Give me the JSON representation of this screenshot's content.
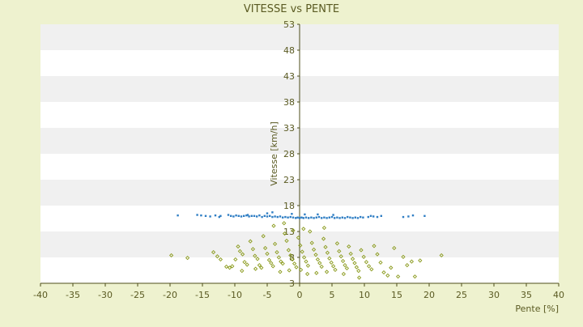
{
  "chart_data": {
    "type": "scatter",
    "title": "VITESSE vs PENTE",
    "xlabel": "Pente [%]",
    "ylabel": "Vitesse [km/h]",
    "xlim": [
      -40,
      40
    ],
    "ylim": [
      3,
      53
    ],
    "x_ticks": [
      -40,
      -35,
      -30,
      -25,
      -20,
      -15,
      -10,
      -5,
      0,
      5,
      10,
      15,
      20,
      25,
      30,
      35,
      40
    ],
    "y_ticks": [
      3,
      8,
      13,
      18,
      23,
      28,
      33,
      38,
      43,
      48,
      53
    ],
    "grid": "horizontal bands",
    "legend": "none",
    "colors": {
      "background": "#eef2cf",
      "band_light": "#ffffff",
      "band_dark": "#f0f0f0",
      "series1": "#2f7ec4",
      "series2": "#8a9a1c",
      "text": "#5a5a22",
      "axis": "#4d4d1a"
    },
    "series": [
      {
        "color": "#2f7ec4",
        "points": [
          [
            -18.8,
            16.1
          ],
          [
            -15.8,
            16.2
          ],
          [
            -15.2,
            16.1
          ],
          [
            -14.5,
            16.0
          ],
          [
            -13.8,
            15.9
          ],
          [
            -13.0,
            16.1
          ],
          [
            -12.4,
            15.8
          ],
          [
            -12.2,
            16.0
          ],
          [
            -11.0,
            16.2
          ],
          [
            -10.6,
            16.0
          ],
          [
            -10.2,
            15.9
          ],
          [
            -9.8,
            16.1
          ],
          [
            -9.4,
            16.0
          ],
          [
            -9.0,
            15.9
          ],
          [
            -8.6,
            16.0
          ],
          [
            -8.2,
            16.1
          ],
          [
            -7.8,
            15.9
          ],
          [
            -7.4,
            16.0
          ],
          [
            -7.0,
            16.0
          ],
          [
            -6.6,
            15.9
          ],
          [
            -6.2,
            16.1
          ],
          [
            -5.8,
            15.8
          ],
          [
            -5.4,
            16.0
          ],
          [
            -5.0,
            15.9
          ],
          [
            -4.6,
            16.0
          ],
          [
            -4.2,
            15.8
          ],
          [
            -3.8,
            15.9
          ],
          [
            -3.4,
            15.8
          ],
          [
            -3.0,
            15.9
          ],
          [
            -2.6,
            15.7
          ],
          [
            -2.2,
            15.8
          ],
          [
            -1.8,
            15.7
          ],
          [
            -1.4,
            15.8
          ],
          [
            -1.0,
            15.7
          ],
          [
            -0.6,
            15.6
          ],
          [
            -0.3,
            15.7
          ],
          [
            0.0,
            15.6
          ],
          [
            0.3,
            15.7
          ],
          [
            0.6,
            15.6
          ],
          [
            1.0,
            15.7
          ],
          [
            1.4,
            15.6
          ],
          [
            1.8,
            15.7
          ],
          [
            2.2,
            15.6
          ],
          [
            2.6,
            15.7
          ],
          [
            3.0,
            15.8
          ],
          [
            3.4,
            15.6
          ],
          [
            3.8,
            15.7
          ],
          [
            4.2,
            15.6
          ],
          [
            4.6,
            15.7
          ],
          [
            5.0,
            15.8
          ],
          [
            5.4,
            15.6
          ],
          [
            5.8,
            15.7
          ],
          [
            6.2,
            15.6
          ],
          [
            6.6,
            15.7
          ],
          [
            7.0,
            15.6
          ],
          [
            7.4,
            15.8
          ],
          [
            7.8,
            15.7
          ],
          [
            8.2,
            15.6
          ],
          [
            8.6,
            15.7
          ],
          [
            9.0,
            15.6
          ],
          [
            9.4,
            15.8
          ],
          [
            9.8,
            15.7
          ],
          [
            10.6,
            15.8
          ],
          [
            11.0,
            16.0
          ],
          [
            11.4,
            15.9
          ],
          [
            12.0,
            15.8
          ],
          [
            12.6,
            16.0
          ],
          [
            16.0,
            15.8
          ],
          [
            16.8,
            15.9
          ],
          [
            17.5,
            16.1
          ],
          [
            19.3,
            16.0
          ],
          [
            -5.0,
            16.5
          ],
          [
            -4.2,
            16.7
          ],
          [
            2.8,
            16.3
          ],
          [
            5.2,
            16.2
          ],
          [
            -8.0,
            16.2
          ],
          [
            0.8,
            16.3
          ],
          [
            -1.2,
            16.4
          ]
        ]
      },
      {
        "color": "#8a9a1c",
        "points": [
          [
            -19.8,
            8.4
          ],
          [
            -17.3,
            7.9
          ],
          [
            -13.3,
            9.0
          ],
          [
            -12.7,
            8.2
          ],
          [
            -12.2,
            7.6
          ],
          [
            -11.3,
            6.2
          ],
          [
            -10.8,
            6.0
          ],
          [
            -10.4,
            6.3
          ],
          [
            -9.9,
            7.6
          ],
          [
            -9.5,
            10.1
          ],
          [
            -9.2,
            9.2
          ],
          [
            -8.8,
            8.6
          ],
          [
            -8.5,
            7.1
          ],
          [
            -8.1,
            6.6
          ],
          [
            -7.6,
            11.1
          ],
          [
            -7.2,
            9.6
          ],
          [
            -6.9,
            8.3
          ],
          [
            -6.5,
            7.7
          ],
          [
            -6.2,
            6.5
          ],
          [
            -5.9,
            6.0
          ],
          [
            -5.6,
            12.1
          ],
          [
            -5.3,
            9.8
          ],
          [
            -5.0,
            8.7
          ],
          [
            -4.7,
            7.5
          ],
          [
            -4.4,
            6.9
          ],
          [
            -4.1,
            6.3
          ],
          [
            -3.8,
            10.6
          ],
          [
            -3.5,
            9.0
          ],
          [
            -3.2,
            8.0
          ],
          [
            -2.9,
            7.2
          ],
          [
            -2.6,
            6.8
          ],
          [
            -2.3,
            12.6
          ],
          [
            -2.0,
            11.2
          ],
          [
            -1.7,
            9.4
          ],
          [
            -1.4,
            8.4
          ],
          [
            -1.1,
            7.6
          ],
          [
            -0.8,
            6.8
          ],
          [
            -0.5,
            6.1
          ],
          [
            -0.2,
            11.8
          ],
          [
            0.1,
            10.3
          ],
          [
            0.4,
            9.1
          ],
          [
            0.7,
            8.0
          ],
          [
            1.0,
            7.2
          ],
          [
            1.3,
            6.4
          ],
          [
            1.6,
            13.0
          ],
          [
            1.9,
            10.8
          ],
          [
            2.2,
            9.5
          ],
          [
            2.5,
            8.5
          ],
          [
            2.8,
            7.6
          ],
          [
            3.1,
            6.9
          ],
          [
            3.4,
            6.2
          ],
          [
            3.7,
            11.6
          ],
          [
            4.0,
            10.0
          ],
          [
            4.3,
            8.9
          ],
          [
            4.6,
            7.8
          ],
          [
            4.9,
            7.0
          ],
          [
            5.2,
            6.3
          ],
          [
            5.5,
            5.6
          ],
          [
            5.8,
            10.7
          ],
          [
            6.1,
            9.2
          ],
          [
            6.4,
            8.2
          ],
          [
            6.7,
            7.3
          ],
          [
            7.0,
            6.5
          ],
          [
            7.3,
            5.9
          ],
          [
            7.6,
            10.1
          ],
          [
            7.9,
            8.7
          ],
          [
            8.2,
            7.7
          ],
          [
            8.5,
            6.9
          ],
          [
            8.8,
            6.1
          ],
          [
            9.1,
            5.4
          ],
          [
            9.5,
            9.4
          ],
          [
            9.9,
            8.1
          ],
          [
            10.3,
            7.1
          ],
          [
            10.7,
            6.3
          ],
          [
            11.1,
            5.7
          ],
          [
            11.5,
            10.2
          ],
          [
            12.0,
            8.6
          ],
          [
            12.5,
            7.0
          ],
          [
            13.0,
            5.1
          ],
          [
            13.6,
            4.5
          ],
          [
            14.1,
            6.0
          ],
          [
            14.6,
            9.8
          ],
          [
            15.2,
            4.3
          ],
          [
            16.0,
            8.1
          ],
          [
            16.6,
            6.5
          ],
          [
            17.3,
            7.2
          ],
          [
            17.8,
            4.3
          ],
          [
            18.6,
            7.4
          ],
          [
            21.9,
            8.4
          ],
          [
            -4.0,
            14.1
          ],
          [
            -2.4,
            14.6
          ],
          [
            0.6,
            13.5
          ],
          [
            3.8,
            13.7
          ],
          [
            -1.0,
            13.2
          ],
          [
            2.6,
            5.0
          ],
          [
            1.2,
            4.8
          ],
          [
            -1.6,
            5.5
          ],
          [
            4.2,
            5.2
          ],
          [
            6.8,
            4.8
          ],
          [
            -6.8,
            5.8
          ],
          [
            -3.0,
            5.2
          ],
          [
            0.2,
            5.6
          ],
          [
            9.2,
            4.1
          ],
          [
            -8.9,
            5.4
          ]
        ]
      }
    ]
  }
}
